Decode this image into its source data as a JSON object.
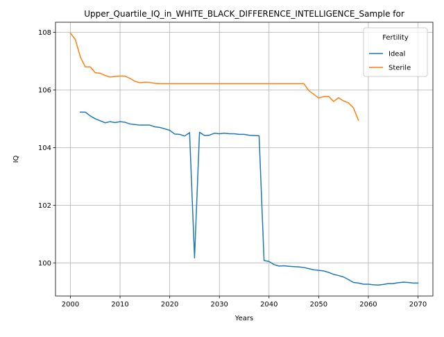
{
  "chart_data": {
    "type": "line",
    "title": "Upper_Quartile_IQ_in_WHITE_BLACK_DIFFERENCE_INTELLIGENCE_Sample for",
    "xlabel": "Years",
    "ylabel": "IQ",
    "xlim": [
      1997,
      2073
    ],
    "ylim": [
      98.85,
      108.35
    ],
    "xticks": [
      2000,
      2010,
      2020,
      2030,
      2040,
      2050,
      2060,
      2070
    ],
    "yticks": [
      100,
      102,
      104,
      106,
      108
    ],
    "grid": true,
    "legend": {
      "title": "Fertility",
      "position": "top-right"
    },
    "series": [
      {
        "name": "Ideal",
        "color": "#1f77b4",
        "points": [
          [
            2002,
            105.23
          ],
          [
            2003,
            105.23
          ],
          [
            2004,
            105.1
          ],
          [
            2005,
            105.0
          ],
          [
            2006,
            104.93
          ],
          [
            2007,
            104.86
          ],
          [
            2008,
            104.9
          ],
          [
            2009,
            104.87
          ],
          [
            2010,
            104.9
          ],
          [
            2011,
            104.88
          ],
          [
            2012,
            104.82
          ],
          [
            2013,
            104.8
          ],
          [
            2014,
            104.78
          ],
          [
            2015,
            104.78
          ],
          [
            2016,
            104.78
          ],
          [
            2017,
            104.72
          ],
          [
            2018,
            104.7
          ],
          [
            2019,
            104.65
          ],
          [
            2020,
            104.6
          ],
          [
            2021,
            104.47
          ],
          [
            2022,
            104.46
          ],
          [
            2023,
            104.4
          ],
          [
            2024,
            104.52
          ],
          [
            2025,
            100.17
          ],
          [
            2026,
            104.53
          ],
          [
            2027,
            104.42
          ],
          [
            2028,
            104.43
          ],
          [
            2029,
            104.5
          ],
          [
            2030,
            104.48
          ],
          [
            2031,
            104.5
          ],
          [
            2032,
            104.48
          ],
          [
            2033,
            104.48
          ],
          [
            2034,
            104.46
          ],
          [
            2035,
            104.46
          ],
          [
            2036,
            104.43
          ],
          [
            2037,
            104.42
          ],
          [
            2038,
            104.41
          ],
          [
            2039,
            100.08
          ],
          [
            2040,
            100.05
          ],
          [
            2041,
            99.94
          ],
          [
            2042,
            99.89
          ],
          [
            2043,
            99.9
          ],
          [
            2044,
            99.88
          ],
          [
            2045,
            99.87
          ],
          [
            2046,
            99.86
          ],
          [
            2047,
            99.84
          ],
          [
            2048,
            99.8
          ],
          [
            2049,
            99.76
          ],
          [
            2050,
            99.74
          ],
          [
            2051,
            99.72
          ],
          [
            2052,
            99.67
          ],
          [
            2053,
            99.6
          ],
          [
            2054,
            99.56
          ],
          [
            2055,
            99.51
          ],
          [
            2056,
            99.42
          ],
          [
            2057,
            99.32
          ],
          [
            2058,
            99.3
          ],
          [
            2059,
            99.26
          ],
          [
            2060,
            99.26
          ],
          [
            2061,
            99.24
          ],
          [
            2062,
            99.23
          ],
          [
            2063,
            99.25
          ],
          [
            2064,
            99.28
          ],
          [
            2065,
            99.28
          ],
          [
            2066,
            99.31
          ],
          [
            2067,
            99.33
          ],
          [
            2068,
            99.32
          ],
          [
            2069,
            99.3
          ],
          [
            2070,
            99.3
          ]
        ]
      },
      {
        "name": "Sterile",
        "color": "#ff7f0e",
        "points": [
          [
            2000,
            107.97
          ],
          [
            2001,
            107.75
          ],
          [
            2002,
            107.15
          ],
          [
            2003,
            106.8
          ],
          [
            2004,
            106.8
          ],
          [
            2005,
            106.6
          ],
          [
            2006,
            106.58
          ],
          [
            2007,
            106.5
          ],
          [
            2008,
            106.45
          ],
          [
            2009,
            106.47
          ],
          [
            2010,
            106.48
          ],
          [
            2011,
            106.48
          ],
          [
            2012,
            106.4
          ],
          [
            2013,
            106.3
          ],
          [
            2014,
            106.25
          ],
          [
            2015,
            106.27
          ],
          [
            2016,
            106.26
          ],
          [
            2017,
            106.23
          ],
          [
            2018,
            106.22
          ],
          [
            2019,
            106.22
          ],
          [
            2020,
            106.22
          ],
          [
            2021,
            106.22
          ],
          [
            2022,
            106.22
          ],
          [
            2023,
            106.22
          ],
          [
            2024,
            106.22
          ],
          [
            2025,
            106.22
          ],
          [
            2026,
            106.22
          ],
          [
            2027,
            106.22
          ],
          [
            2028,
            106.22
          ],
          [
            2029,
            106.22
          ],
          [
            2030,
            106.22
          ],
          [
            2031,
            106.22
          ],
          [
            2032,
            106.22
          ],
          [
            2033,
            106.22
          ],
          [
            2034,
            106.22
          ],
          [
            2035,
            106.22
          ],
          [
            2036,
            106.22
          ],
          [
            2037,
            106.22
          ],
          [
            2038,
            106.22
          ],
          [
            2039,
            106.22
          ],
          [
            2040,
            106.22
          ],
          [
            2041,
            106.22
          ],
          [
            2042,
            106.22
          ],
          [
            2043,
            106.22
          ],
          [
            2044,
            106.22
          ],
          [
            2045,
            106.22
          ],
          [
            2046,
            106.22
          ],
          [
            2047,
            106.22
          ],
          [
            2048,
            105.98
          ],
          [
            2049,
            105.85
          ],
          [
            2050,
            105.72
          ],
          [
            2051,
            105.77
          ],
          [
            2052,
            105.78
          ],
          [
            2053,
            105.6
          ],
          [
            2054,
            105.73
          ],
          [
            2055,
            105.62
          ],
          [
            2056,
            105.55
          ],
          [
            2057,
            105.38
          ],
          [
            2058,
            104.95
          ]
        ]
      }
    ]
  }
}
